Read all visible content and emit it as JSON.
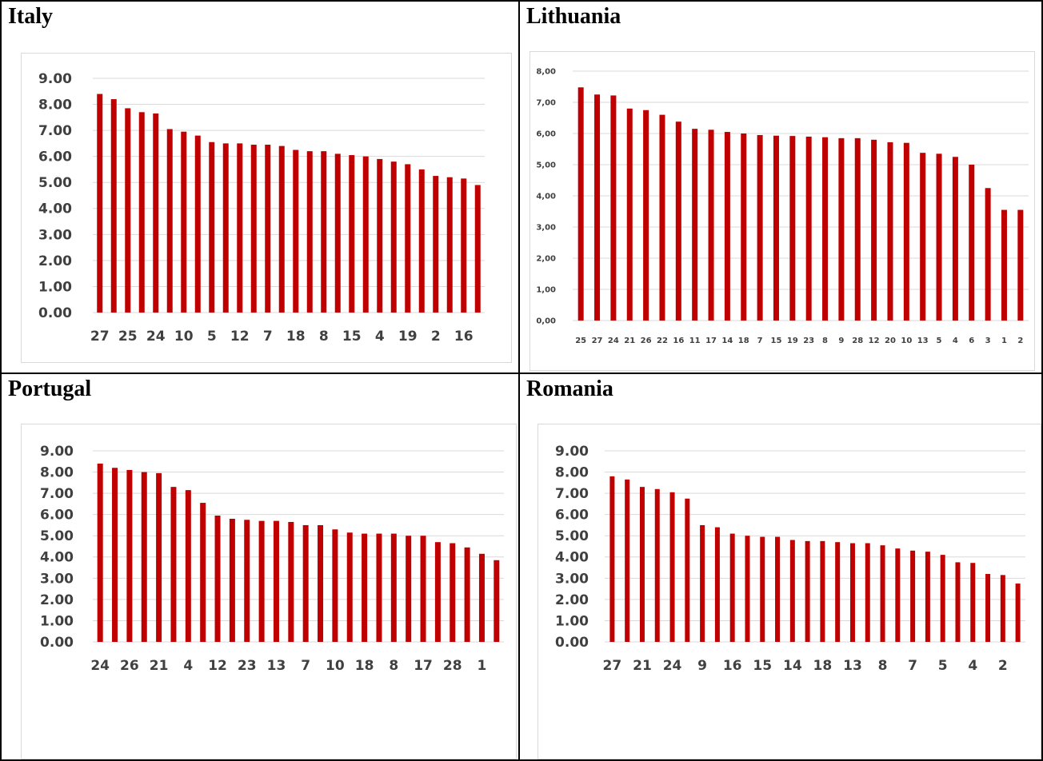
{
  "panels": [
    {
      "title": "Italy"
    },
    {
      "title": "Lithuania"
    },
    {
      "title": "Portugal"
    },
    {
      "title": "Romania"
    }
  ],
  "colors": {
    "bar": "#c00000",
    "grid": "#d9d9d9",
    "label": "#404040"
  },
  "chart_data": [
    {
      "type": "bar",
      "panel": "Italy",
      "title": "",
      "ylim": [
        0,
        9
      ],
      "yticks": [
        "0.00",
        "1.00",
        "2.00",
        "3.00",
        "4.00",
        "5.00",
        "6.00",
        "7.00",
        "8.00",
        "9.00"
      ],
      "grid": true,
      "x_tick_labels": [
        "27",
        "25",
        "24",
        "10",
        "5",
        "12",
        "7",
        "18",
        "8",
        "15",
        "4",
        "19",
        "2",
        "16"
      ],
      "label_every": 2,
      "values": [
        8.4,
        8.2,
        7.85,
        7.7,
        7.65,
        7.05,
        6.95,
        6.8,
        6.55,
        6.5,
        6.5,
        6.45,
        6.45,
        6.4,
        6.25,
        6.2,
        6.2,
        6.1,
        6.05,
        6.0,
        5.9,
        5.8,
        5.7,
        5.5,
        5.25,
        5.2,
        5.15,
        4.9
      ]
    },
    {
      "type": "bar",
      "panel": "Lithuania",
      "title": "",
      "ylim": [
        0,
        8
      ],
      "yticks": [
        "0,00",
        "1,00",
        "2,00",
        "3,00",
        "4,00",
        "5,00",
        "6,00",
        "7,00",
        "8,00"
      ],
      "grid": true,
      "x_tick_labels": [
        "25",
        "27",
        "24",
        "21",
        "26",
        "22",
        "16",
        "11",
        "17",
        "14",
        "18",
        "7",
        "15",
        "19",
        "23",
        "8",
        "9",
        "28",
        "12",
        "20",
        "10",
        "13",
        "5",
        "4",
        "6",
        "3",
        "1",
        "2"
      ],
      "label_every": 1,
      "values": [
        7.48,
        7.25,
        7.22,
        6.8,
        6.75,
        6.6,
        6.38,
        6.15,
        6.12,
        6.05,
        6.0,
        5.95,
        5.93,
        5.92,
        5.9,
        5.88,
        5.85,
        5.85,
        5.8,
        5.72,
        5.7,
        5.38,
        5.35,
        5.25,
        5.0,
        4.25,
        3.55,
        3.55
      ]
    },
    {
      "type": "bar",
      "panel": "Portugal",
      "title": "",
      "ylim": [
        0,
        9
      ],
      "yticks": [
        "0.00",
        "1.00",
        "2.00",
        "3.00",
        "4.00",
        "5.00",
        "6.00",
        "7.00",
        "8.00",
        "9.00"
      ],
      "grid": true,
      "x_tick_labels": [
        "24",
        "26",
        "21",
        "4",
        "12",
        "23",
        "13",
        "7",
        "10",
        "18",
        "8",
        "17",
        "28",
        "1"
      ],
      "label_every": 2,
      "values": [
        8.4,
        8.2,
        8.1,
        8.0,
        7.95,
        7.3,
        7.15,
        6.55,
        5.95,
        5.8,
        5.75,
        5.7,
        5.7,
        5.65,
        5.5,
        5.5,
        5.3,
        5.15,
        5.1,
        5.1,
        5.1,
        5.0,
        5.0,
        4.7,
        4.65,
        4.45,
        4.15,
        3.85
      ]
    },
    {
      "type": "bar",
      "panel": "Romania",
      "title": "",
      "ylim": [
        0,
        9
      ],
      "yticks": [
        "0.00",
        "1.00",
        "2.00",
        "3.00",
        "4.00",
        "5.00",
        "6.00",
        "7.00",
        "8.00",
        "9.00"
      ],
      "grid": true,
      "x_tick_labels": [
        "27",
        "21",
        "24",
        "9",
        "16",
        "15",
        "14",
        "18",
        "13",
        "8",
        "7",
        "5",
        "4",
        "2"
      ],
      "label_every": 2,
      "values": [
        7.8,
        7.65,
        7.3,
        7.2,
        7.05,
        6.75,
        5.5,
        5.4,
        5.1,
        5.0,
        4.95,
        4.95,
        4.8,
        4.75,
        4.75,
        4.7,
        4.65,
        4.65,
        4.55,
        4.4,
        4.3,
        4.25,
        4.1,
        3.75,
        3.72,
        3.2,
        3.15,
        2.75
      ]
    }
  ]
}
